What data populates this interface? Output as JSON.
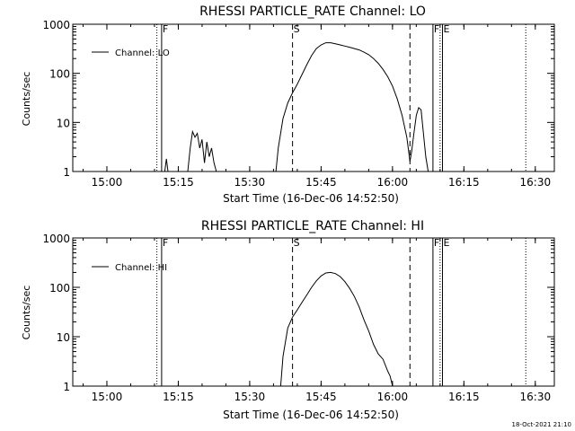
{
  "footer": {
    "timestamp": "18-Oct-2021 21:10"
  },
  "chart_data": [
    {
      "type": "line",
      "title": "RHESSI PARTICLE_RATE Channel: LO",
      "xlabel": "Start Time (16-Dec-06 14:52:50)",
      "ylabel": "Counts/sec",
      "yscale": "log",
      "ylim": [
        1,
        1000
      ],
      "xlim": [
        "14:52:50",
        "16:34:00"
      ],
      "x_ticks": [
        "15:00",
        "15:15",
        "15:30",
        "15:45",
        "16:00",
        "16:15",
        "16:30"
      ],
      "y_ticks": [
        "1",
        "10",
        "100",
        "1000"
      ],
      "legend": {
        "label": "Channel: LO",
        "position": "top-left"
      },
      "markers": [
        {
          "label": "F",
          "time": "15:11:30",
          "style": "solid"
        },
        {
          "label": "S",
          "time": "15:39:00",
          "style": "dashed"
        },
        {
          "label": "F",
          "time": "16:08:30",
          "style": "solid"
        },
        {
          "label": "E",
          "time": "16:10:30",
          "style": "solid"
        }
      ],
      "extra_lines": [
        {
          "time": "15:10:30",
          "style": "dotted"
        },
        {
          "time": "16:10:00",
          "style": "dotted"
        },
        {
          "time": "16:28:00",
          "style": "dotted"
        },
        {
          "time": "16:03:40",
          "style": "dashed"
        }
      ],
      "series": [
        {
          "label": "Channel: LO",
          "segments": [
            {
              "x": [
                "15:12:10",
                "15:12:30",
                "15:12:50"
              ],
              "y": [
                1,
                1.8,
                1
              ]
            },
            {
              "x": [
                "15:17:00",
                "15:17:30",
                "15:18:00",
                "15:18:30",
                "15:19:00",
                "15:19:30",
                "15:20:00",
                "15:20:30",
                "15:21:00",
                "15:21:30",
                "15:22:00",
                "15:22:30",
                "15:23:00"
              ],
              "y": [
                1,
                3,
                6.5,
                5,
                6,
                3,
                4.5,
                1.5,
                4,
                2,
                3,
                1.5,
                1
              ]
            },
            {
              "x": [
                "15:35:30",
                "15:36:00",
                "15:37:00",
                "15:38:00",
                "15:39:00",
                "15:40:00",
                "15:41:00",
                "15:42:00",
                "15:43:00",
                "15:44:00",
                "15:45:00",
                "15:46:00",
                "15:47:00",
                "15:48:00",
                "15:49:00",
                "15:50:00",
                "15:51:00",
                "15:52:00",
                "15:53:00",
                "15:54:00",
                "15:55:00",
                "15:56:00",
                "15:57:00",
                "15:58:00",
                "15:59:00",
                "16:00:00",
                "16:01:00",
                "16:02:00",
                "16:03:00",
                "16:03:40",
                "16:04:00",
                "16:04:30",
                "16:05:00",
                "16:05:30",
                "16:06:00",
                "16:06:30",
                "16:07:00",
                "16:07:30"
              ],
              "y": [
                1,
                3,
                12,
                25,
                40,
                60,
                95,
                150,
                230,
                320,
                380,
                420,
                420,
                400,
                380,
                360,
                340,
                320,
                300,
                270,
                240,
                200,
                160,
                120,
                85,
                55,
                30,
                14,
                5,
                1.6,
                2.5,
                6,
                14,
                20,
                18,
                6,
                2,
                1
              ]
            }
          ]
        }
      ]
    },
    {
      "type": "line",
      "title": "RHESSI PARTICLE_RATE Channel: HI",
      "xlabel": "Start Time (16-Dec-06 14:52:50)",
      "ylabel": "Counts/sec",
      "yscale": "log",
      "ylim": [
        1,
        1000
      ],
      "xlim": [
        "14:52:50",
        "16:34:00"
      ],
      "x_ticks": [
        "15:00",
        "15:15",
        "15:30",
        "15:45",
        "16:00",
        "16:15",
        "16:30"
      ],
      "y_ticks": [
        "1",
        "10",
        "100",
        "1000"
      ],
      "legend": {
        "label": "Channel: HI",
        "position": "top-left"
      },
      "markers": [
        {
          "label": "F",
          "time": "15:11:30",
          "style": "solid"
        },
        {
          "label": "S",
          "time": "15:39:00",
          "style": "dashed"
        },
        {
          "label": "F",
          "time": "16:08:30",
          "style": "solid"
        },
        {
          "label": "E",
          "time": "16:10:30",
          "style": "solid"
        }
      ],
      "extra_lines": [
        {
          "time": "15:10:30",
          "style": "dotted"
        },
        {
          "time": "16:10:00",
          "style": "dotted"
        },
        {
          "time": "16:28:00",
          "style": "dotted"
        },
        {
          "time": "16:03:40",
          "style": "dashed"
        }
      ],
      "series": [
        {
          "label": "Channel: HI",
          "segments": [
            {
              "x": [
                "15:36:30",
                "15:37:00",
                "15:38:00",
                "15:39:00",
                "15:40:00",
                "15:41:00",
                "15:42:00",
                "15:43:00",
                "15:44:00",
                "15:45:00",
                "15:46:00",
                "15:47:00",
                "15:48:00",
                "15:49:00",
                "15:50:00",
                "15:51:00",
                "15:52:00",
                "15:53:00",
                "15:54:00",
                "15:55:00",
                "15:56:00",
                "15:57:00",
                "15:58:00",
                "15:59:00",
                "15:59:30",
                "16:00:00"
              ],
              "y": [
                1,
                4,
                15,
                25,
                35,
                50,
                70,
                100,
                135,
                170,
                195,
                200,
                190,
                165,
                130,
                95,
                65,
                40,
                22,
                13,
                7,
                4.5,
                3.5,
                2,
                1.6,
                1
              ]
            }
          ]
        }
      ]
    }
  ]
}
